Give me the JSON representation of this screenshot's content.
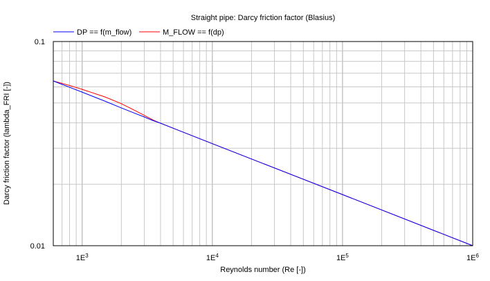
{
  "chart_data": {
    "type": "line",
    "title": "Straight pipe: Darcy friction factor (Blasius)",
    "xlabel": "Reynolds number (Re [-])",
    "ylabel": "Darcy friction factor (lambda_FRI [-])",
    "x_scale": "log",
    "y_scale": "log",
    "xlim": [
      600,
      1000000
    ],
    "ylim": [
      0.01,
      0.1
    ],
    "grid": true,
    "legend_position": "top-left",
    "x_ticks": [
      {
        "value": 1000,
        "base": "1E",
        "exp": "3"
      },
      {
        "value": 10000,
        "base": "1E",
        "exp": "4"
      },
      {
        "value": 100000,
        "base": "1E",
        "exp": "5"
      },
      {
        "value": 1000000,
        "base": "1E",
        "exp": "6"
      }
    ],
    "y_ticks": [
      {
        "value": 0.01,
        "label": "0.01"
      },
      {
        "value": 0.1,
        "label": "0.1"
      }
    ],
    "series": [
      {
        "name": "DP == f(m_flow)",
        "color": "#0000ff",
        "x": [
          600,
          700,
          800,
          1000,
          1500,
          2000,
          2500,
          3000,
          3500,
          4000,
          10000,
          100000,
          1000000
        ],
        "y": [
          0.0641,
          0.0617,
          0.0597,
          0.0565,
          0.051,
          0.0473,
          0.0447,
          0.0427,
          0.041,
          0.0398,
          0.0316,
          0.0178,
          0.01
        ]
      },
      {
        "name": "M_FLOW == f(dp)",
        "color": "#ff0000",
        "x": [
          600,
          700,
          800,
          1000,
          1500,
          2000,
          2500,
          3000,
          3500,
          4000,
          10000,
          100000,
          1000000
        ],
        "y": [
          0.0641,
          0.0624,
          0.0609,
          0.0583,
          0.0535,
          0.0496,
          0.0462,
          0.0435,
          0.0413,
          0.0398,
          0.0316,
          0.0178,
          0.01
        ]
      }
    ]
  }
}
